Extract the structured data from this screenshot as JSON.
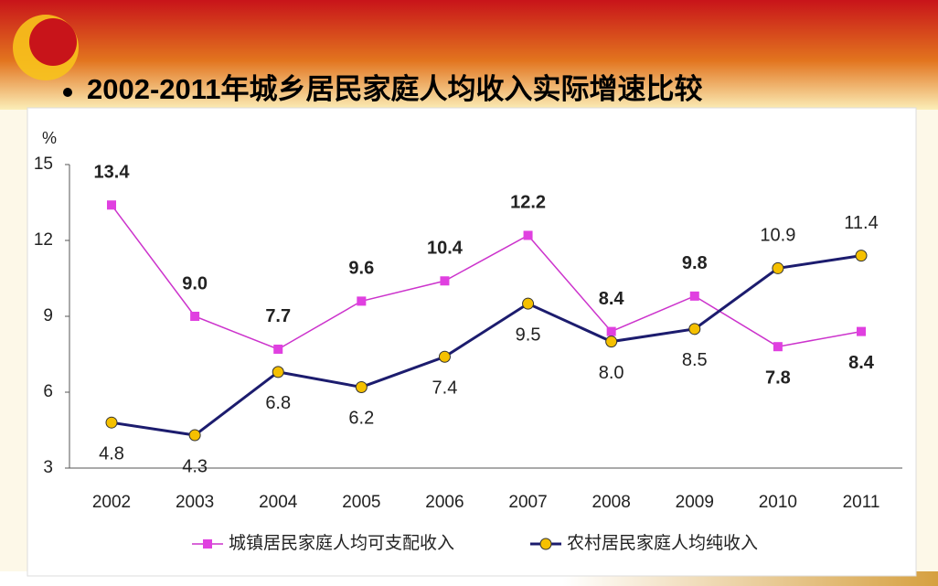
{
  "chart_data": {
    "type": "line",
    "title": "2002-2011年城乡居民家庭人均收入实际增速比较",
    "ylabel": "%",
    "categories": [
      "2002",
      "2003",
      "2004",
      "2005",
      "2006",
      "2007",
      "2008",
      "2009",
      "2010",
      "2011"
    ],
    "series": [
      {
        "name": "城镇居民家庭人均可支配收入",
        "color": "#cc33cc",
        "values": [
          13.4,
          9.0,
          7.7,
          9.6,
          10.4,
          12.2,
          8.4,
          9.8,
          7.8,
          8.4
        ],
        "value_labels": [
          "13.4",
          "9.0",
          "7.7",
          "9.6",
          "10.4",
          "12.2",
          "8.4",
          "9.8",
          "7.8",
          "8.4"
        ]
      },
      {
        "name": "农村居民家庭人均纯收入",
        "color": "#1c1c6e",
        "values": [
          4.8,
          4.3,
          6.8,
          6.2,
          7.4,
          9.5,
          8.0,
          8.5,
          10.9,
          11.4
        ],
        "value_labels": [
          "4.8",
          "4.3",
          "6.8",
          "6.2",
          "7.4",
          "9.5",
          "8.0",
          "8.5",
          "10.9",
          "11.4"
        ]
      }
    ],
    "ylim": [
      3,
      15
    ],
    "yticks": [
      3,
      6,
      9,
      12,
      15
    ],
    "grid": false
  }
}
